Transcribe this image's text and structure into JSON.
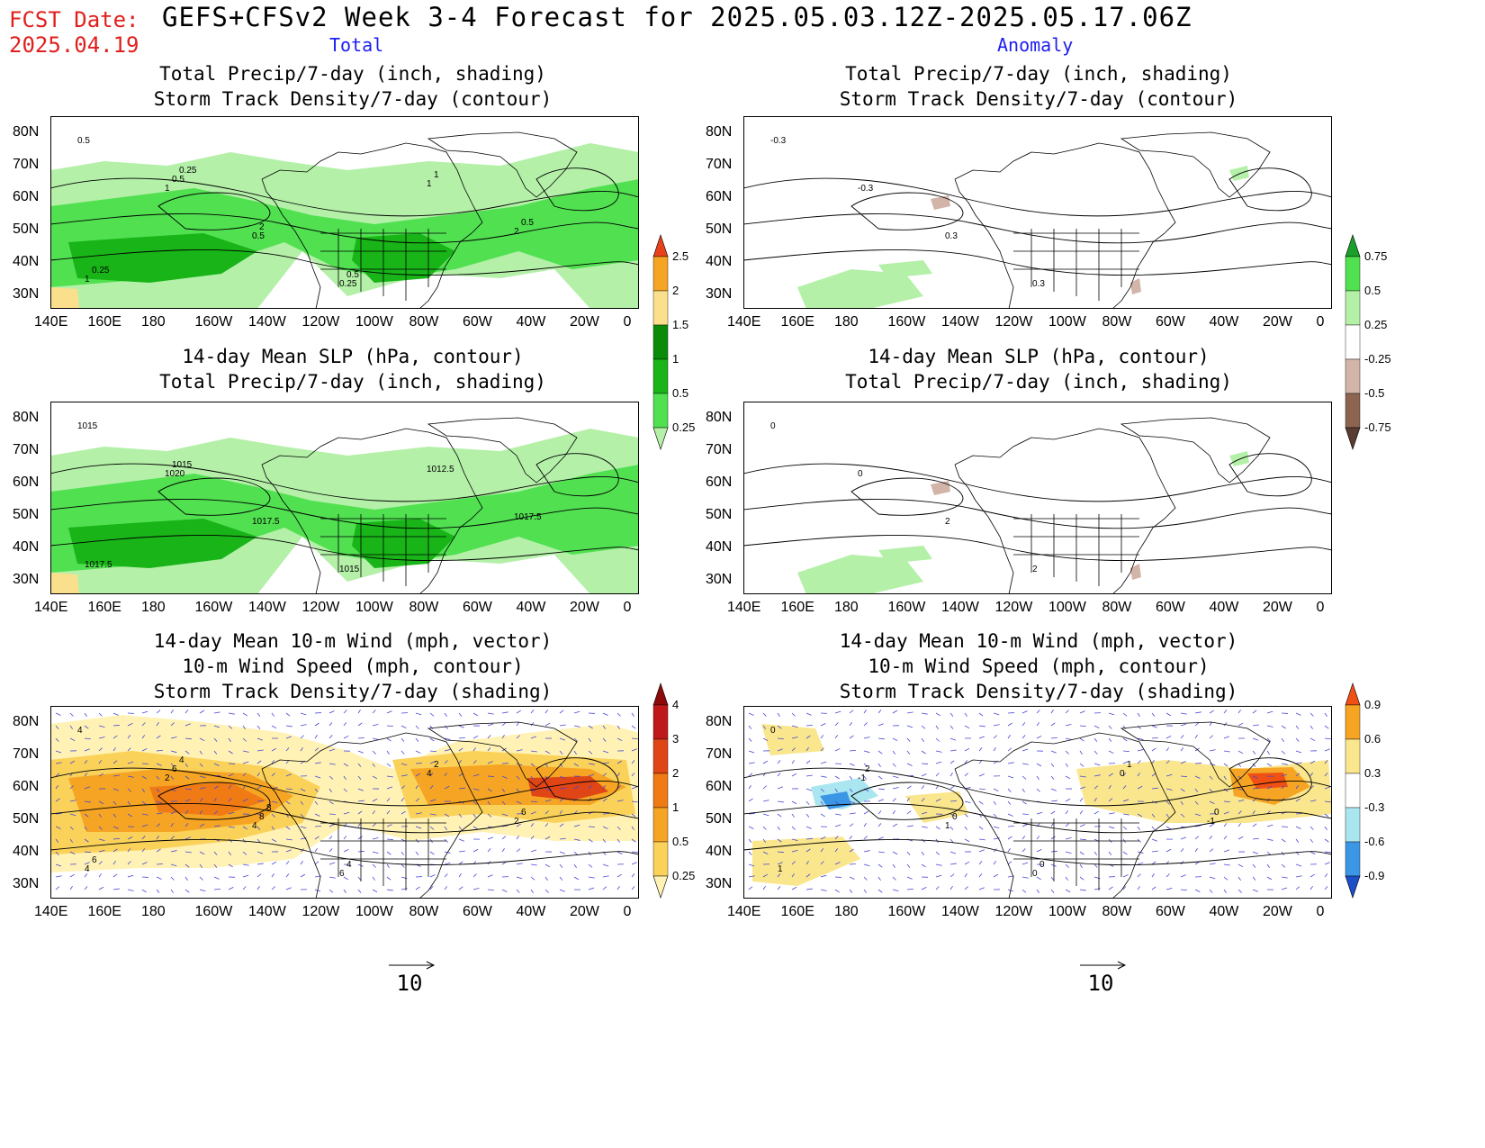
{
  "header": {
    "fcst_label": "FCST Date:",
    "fcst_date": "2025.04.19",
    "title": "GEFS+CFSv2 Week 3-4 Forecast for 2025.05.03.12Z-2025.05.17.06Z",
    "total_label": "Total",
    "anomaly_label": "Anomaly"
  },
  "axes": {
    "lon_labels": [
      "140E",
      "160E",
      "180",
      "160W",
      "140W",
      "120W",
      "100W",
      "80W",
      "60W",
      "40W",
      "20W",
      "0"
    ],
    "lat_labels": [
      "80N",
      "70N",
      "60N",
      "50N",
      "40N",
      "30N"
    ]
  },
  "panels": [
    {
      "id": "total-precip-storm",
      "title_lines": [
        "Total Precip/7-day (inch, shading)",
        "Storm Track Density/7-day (contour)"
      ],
      "contour_labels": [
        "0.5",
        "1",
        "0.5",
        "0.25",
        "1",
        "2",
        "1",
        "0.5",
        "2",
        "0.5",
        "1",
        "0.5",
        "0.25",
        "0.25"
      ]
    },
    {
      "id": "anom-precip-storm",
      "title_lines": [
        "Total Precip/7-day (inch, shading)",
        "Storm Track Density/7-day (contour)"
      ],
      "contour_labels": [
        "-0.3",
        "-0.3",
        "0.3",
        "0.3"
      ]
    },
    {
      "id": "total-slp-precip",
      "title_lines": [
        "14-day Mean SLP (hPa, contour)",
        "Total Precip/7-day (inch, shading)"
      ],
      "contour_labels": [
        "1015",
        "1020",
        "1017.5",
        "1015",
        "1012.5",
        "1017.5",
        "1017.5",
        "1015"
      ]
    },
    {
      "id": "anom-slp-precip",
      "title_lines": [
        "14-day Mean SLP (hPa, contour)",
        "Total Precip/7-day (inch, shading)"
      ],
      "contour_labels": [
        "0",
        "0",
        "2",
        "2"
      ]
    },
    {
      "id": "total-wind-storm",
      "title_lines": [
        "14-day Mean 10-m Wind (mph, vector)",
        "10-m Wind Speed (mph, contour)",
        "Storm Track Density/7-day (shading)"
      ],
      "contour_labels": [
        "4",
        "2",
        "4",
        "6",
        "4",
        "2",
        "4",
        "6",
        "8",
        "4",
        "2",
        "6",
        "6",
        "4",
        "8"
      ]
    },
    {
      "id": "anom-wind-storm",
      "title_lines": [
        "14-day Mean 10-m Wind (mph, vector)",
        "10-m Wind Speed (mph, contour)",
        "Storm Track Density/7-day (shading)"
      ],
      "contour_labels": [
        "0",
        "-1",
        "1",
        "0",
        "0",
        "-1",
        "1",
        "2",
        "0",
        "0",
        "1",
        "0"
      ]
    }
  ],
  "colorbars": {
    "precip_total": {
      "labels": [
        "0.25",
        "0.5",
        "1",
        "1.5",
        "2",
        "2.5"
      ],
      "colors": [
        "#b4f0a8",
        "#50e050",
        "#18b418",
        "#0a8c0a",
        "#fae08c",
        "#f5a523",
        "#e8421c"
      ]
    },
    "precip_anom": {
      "labels": [
        "-0.75",
        "-0.5",
        "-0.25",
        "0.25",
        "0.5",
        "0.75"
      ],
      "colors": [
        "#5a3c32",
        "#8c6450",
        "#d2b4a8",
        "#ffffff",
        "#b4f0a8",
        "#50e050",
        "#18a02a"
      ]
    },
    "storm_total": {
      "labels": [
        "0.25",
        "0.5",
        "1",
        "2",
        "3",
        "4"
      ],
      "colors": [
        "#fff2b4",
        "#fad25a",
        "#f5a523",
        "#f07b14",
        "#e04516",
        "#c01818",
        "#8c0a0a"
      ]
    },
    "storm_anom": {
      "labels": [
        "-0.9",
        "-0.6",
        "-0.3",
        "0.3",
        "0.6",
        "0.9"
      ],
      "colors": [
        "#1c50c8",
        "#3c96e6",
        "#aae6f0",
        "#ffffff",
        "#fae68c",
        "#f5a523",
        "#f05014"
      ]
    }
  },
  "vector_ref": {
    "value": "10"
  }
}
